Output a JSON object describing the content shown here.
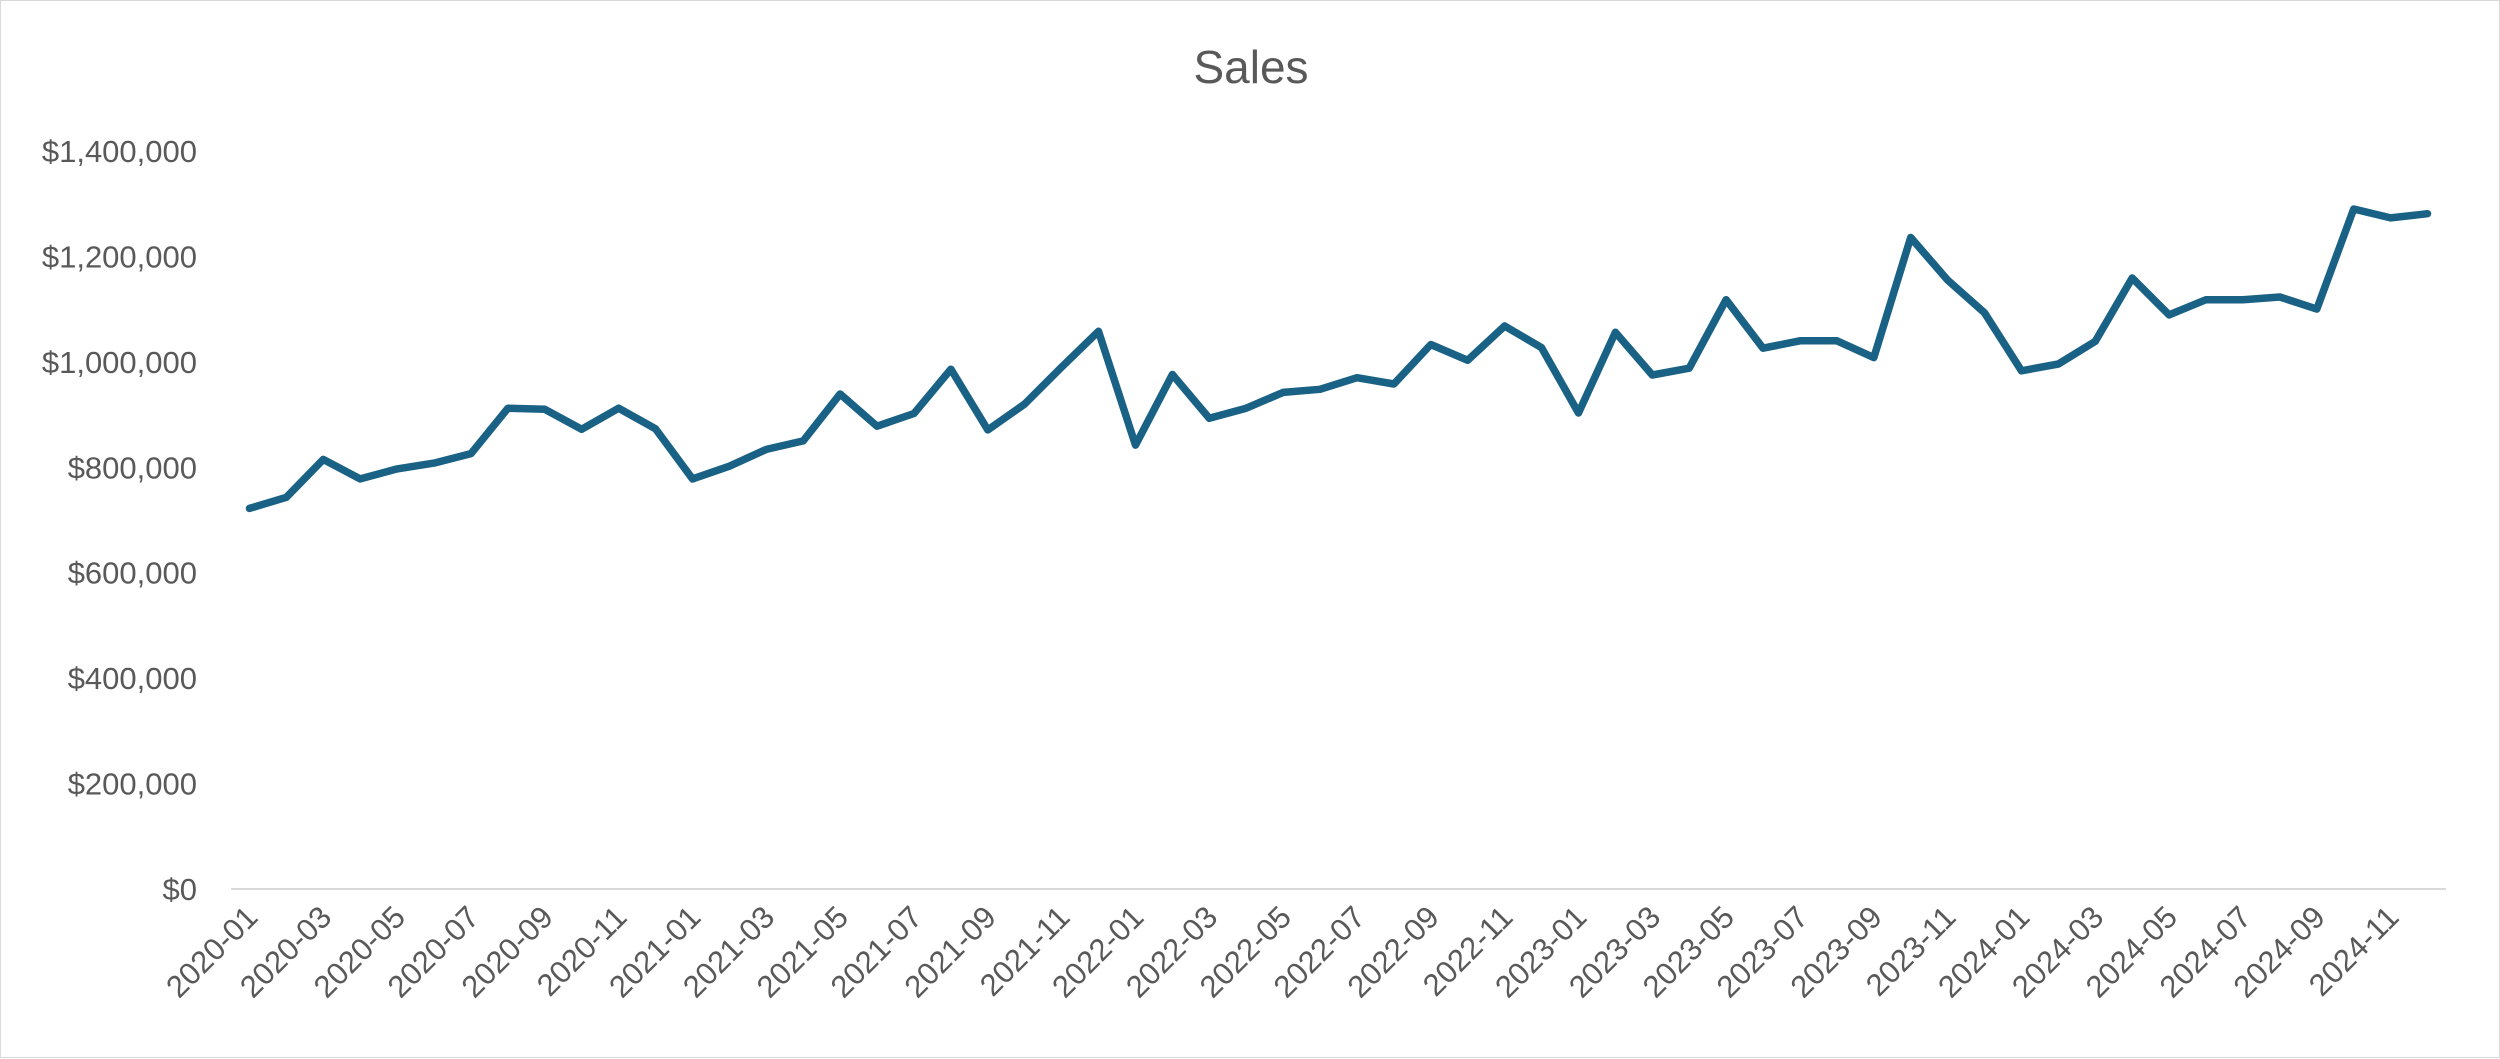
{
  "chart_data": {
    "type": "line",
    "title": "Sales",
    "xlabel": "",
    "ylabel": "",
    "ylim": [
      0,
      1400000
    ],
    "y_ticks": [
      0,
      200000,
      400000,
      600000,
      800000,
      1000000,
      1200000,
      1400000
    ],
    "y_tick_labels": [
      "$0",
      "$200,000",
      "$400,000",
      "$600,000",
      "$800,000",
      "$1,000,000",
      "$1,200,000",
      "$1,400,000"
    ],
    "x_tick_labels": [
      "2020-01",
      "2020-03",
      "2020-05",
      "2020-07",
      "2020-09",
      "2020-11",
      "2021-01",
      "2021-03",
      "2021-05",
      "2021-07",
      "2021-09",
      "2021-11",
      "2022-01",
      "2022-03",
      "2022-05",
      "2022-07",
      "2022-09",
      "2022-11",
      "2023-01",
      "2023-03",
      "2023-05",
      "2023-07",
      "2023-09",
      "2023-11",
      "2024-01",
      "2024-03",
      "2024-05",
      "2024-07",
      "2024-09",
      "2024-11"
    ],
    "grid": false,
    "legend": "none",
    "categories": [
      "2020-01",
      "2020-02",
      "2020-03",
      "2020-04",
      "2020-05",
      "2020-06",
      "2020-07",
      "2020-08",
      "2020-09",
      "2020-10",
      "2020-11",
      "2020-12",
      "2021-01",
      "2021-02",
      "2021-03",
      "2021-04",
      "2021-05",
      "2021-06",
      "2021-07",
      "2021-08",
      "2021-09",
      "2021-10",
      "2021-11",
      "2021-12",
      "2022-01",
      "2022-02",
      "2022-03",
      "2022-04",
      "2022-05",
      "2022-06",
      "2022-07",
      "2022-08",
      "2022-09",
      "2022-10",
      "2022-11",
      "2022-12",
      "2023-01",
      "2023-02",
      "2023-03",
      "2023-04",
      "2023-05",
      "2023-06",
      "2023-07",
      "2023-08",
      "2023-09",
      "2023-10",
      "2023-11",
      "2023-12",
      "2024-01",
      "2024-02",
      "2024-03",
      "2024-04",
      "2024-05",
      "2024-06",
      "2024-07",
      "2024-08",
      "2024-09",
      "2024-10",
      "2024-11",
      "2024-12"
    ],
    "series": [
      {
        "color": "#1a6285",
        "values": [
          722000,
          743000,
          815000,
          778000,
          797000,
          808000,
          826000,
          912000,
          910000,
          872000,
          912000,
          873000,
          778000,
          802000,
          834000,
          850000,
          939000,
          878000,
          902000,
          986000,
          871000,
          920000,
          990000,
          1058000,
          842000,
          976000,
          893000,
          912000,
          942000,
          948000,
          970000,
          958000,
          1033000,
          1003000,
          1068000,
          1027000,
          903000,
          1056000,
          975000,
          988000,
          1118000,
          1026000,
          1040000,
          1040000,
          1008000,
          1236000,
          1155000,
          1093000,
          983000,
          996000,
          1039000,
          1159000,
          1089000,
          1118000,
          1118000,
          1123000,
          1100000,
          1290000,
          1273000,
          1281000
        ]
      }
    ]
  }
}
